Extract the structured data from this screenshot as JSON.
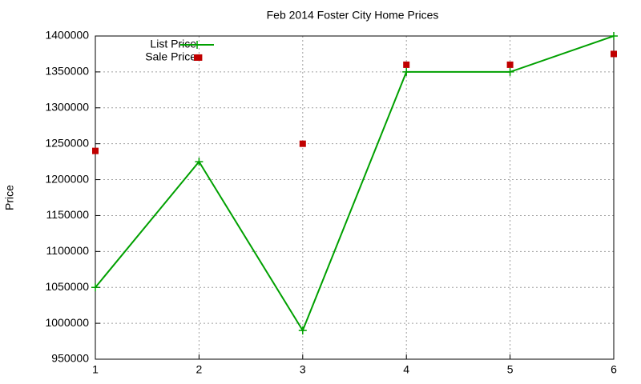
{
  "chart_data": {
    "type": "line",
    "title": "Feb 2014 Foster City Home Prices",
    "y_label": "Price",
    "x": [
      1,
      2,
      3,
      4,
      5,
      6
    ],
    "series": [
      {
        "name": "List Price",
        "color": "#00a000",
        "line": true,
        "marker": "plus",
        "values": [
          1050000,
          1225000,
          990000,
          1350000,
          1350000,
          1400000
        ]
      },
      {
        "name": "Sale Price",
        "color": "#c00000",
        "line": false,
        "marker": "square",
        "values": [
          1240000,
          1370000,
          1250000,
          1360000,
          1360000,
          1375000
        ]
      }
    ],
    "xlim": [
      1,
      6
    ],
    "xticks": [
      1,
      2,
      3,
      4,
      5,
      6
    ],
    "ylim": [
      950000,
      1400000
    ],
    "yticks": [
      950000,
      1000000,
      1050000,
      1100000,
      1150000,
      1200000,
      1250000,
      1300000,
      1350000,
      1400000
    ],
    "grid": true,
    "legend": "top-left"
  }
}
